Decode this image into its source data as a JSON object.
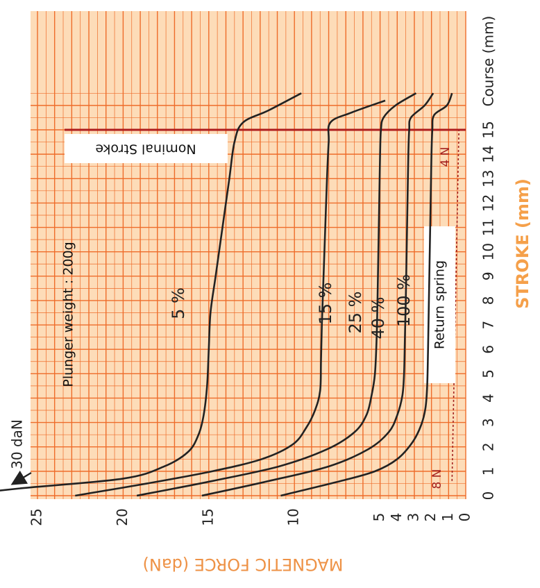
{
  "chart_data": {
    "type": "line",
    "title": "",
    "xlabel": "STROKE (mm)",
    "xlabel_secondary": "Course (mm)",
    "ylabel": "MAGNETIC FORCE (daN)",
    "xlim": [
      0,
      16.5
    ],
    "ylim": [
      0,
      26.5
    ],
    "x_ticks": [
      0,
      1,
      2,
      3,
      4,
      5,
      6,
      7,
      8,
      9,
      10,
      11,
      12,
      13,
      14,
      15
    ],
    "y_ticks": [
      0,
      1,
      2,
      3,
      4,
      5,
      10,
      15,
      20,
      25
    ],
    "grid": true,
    "orientation": "rotated 90° counter-clockwise",
    "series": [
      {
        "name": "5 %",
        "x": [
          0,
          0.3,
          0.7,
          1.2,
          1.8,
          2.5,
          3.3,
          4.5,
          6,
          7.5,
          9,
          11,
          13,
          14.5,
          15.3,
          15.8,
          16.5
        ],
        "y": [
          30,
          26,
          20,
          17.6,
          16.2,
          15.6,
          15.3,
          15.1,
          15.0,
          14.9,
          14.6,
          14.2,
          13.8,
          13.5,
          13.0,
          11.5,
          9.6
        ]
      },
      {
        "name": "15 %",
        "x": [
          0,
          0.5,
          1.0,
          1.5,
          2.1,
          2.8,
          3.5,
          4.3,
          5.5,
          7,
          9,
          11,
          13,
          14.5,
          15.3,
          15.7,
          16.2
        ],
        "y": [
          22.8,
          18.6,
          14.8,
          11.9,
          10.1,
          9.3,
          8.8,
          8.5,
          8.45,
          8.4,
          8.3,
          8.2,
          8.1,
          8.0,
          7.9,
          6.7,
          4.7
        ]
      },
      {
        "name": "25 %",
        "x": [
          0,
          0.6,
          1.2,
          1.9,
          2.6,
          3.3,
          4.1,
          5,
          6.5,
          8,
          10,
          12,
          14,
          15,
          15.5,
          16.0,
          16.5
        ],
        "y": [
          19.2,
          14.8,
          10.9,
          8.1,
          6.5,
          5.8,
          5.5,
          5.3,
          5.2,
          5.15,
          5.1,
          5.05,
          5.0,
          4.95,
          4.8,
          4.1,
          2.9
        ]
      },
      {
        "name": "40 %",
        "x": [
          0,
          0.6,
          1.2,
          1.9,
          2.6,
          3.3,
          4.1,
          5,
          6.5,
          8,
          10,
          12,
          14,
          15,
          15.5,
          16.0,
          16.5
        ],
        "y": [
          15.4,
          11.5,
          8.0,
          5.7,
          4.5,
          4.0,
          3.7,
          3.6,
          3.55,
          3.5,
          3.45,
          3.4,
          3.35,
          3.3,
          3.2,
          2.4,
          1.9
        ]
      },
      {
        "name": "100 %",
        "x": [
          0,
          0.6,
          1.0,
          1.5,
          2.2,
          2.9,
          3.6,
          4.5,
          6,
          8,
          10,
          12,
          14,
          15,
          15.6,
          16.0,
          16.5
        ],
        "y": [
          10.8,
          7.3,
          5.3,
          4.0,
          3.1,
          2.6,
          2.35,
          2.25,
          2.2,
          2.15,
          2.1,
          2.05,
          2.0,
          1.95,
          1.85,
          1.1,
          0.8
        ]
      }
    ],
    "return_spring": {
      "name": "Return spring",
      "x": [
        0.6,
        15
      ],
      "y": [
        0.8,
        0.4
      ],
      "label_start": "8 N",
      "label_end": "4 N"
    },
    "annotations": {
      "nominal_stroke": {
        "x": 15,
        "label": "Nominal Stroke"
      },
      "plunger_weight": "Plunger weight : 200g",
      "arrow_label": "30 daN",
      "spring_label": "Return spring"
    },
    "colors": {
      "background": "#fddcb8",
      "grid": "#ee6c2a",
      "curve": "#222222",
      "nominal_line": "#b01e1e",
      "spring": "#a3201e",
      "axis_title_stroke": "#f5a04a",
      "axis_title_force": "#ee9246"
    }
  }
}
